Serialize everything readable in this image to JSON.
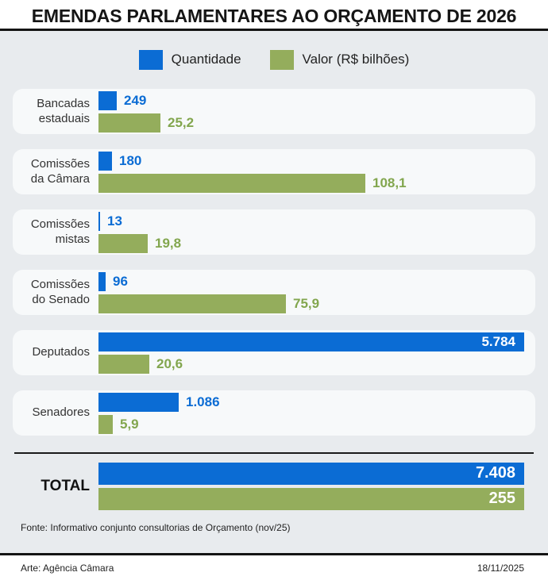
{
  "title": "EMENDAS PARLAMENTARES AO ORÇAMENTO DE 2026",
  "legend": {
    "quantidade": {
      "label": "Quantidade",
      "color": "#0b6cd4"
    },
    "valor": {
      "label": "Valor (R$ bilhões)",
      "color": "#94ad5c"
    }
  },
  "chart_data": {
    "type": "bar",
    "orientation": "horizontal",
    "series": [
      "Quantidade",
      "Valor (R$ bilhões)"
    ],
    "colors": {
      "quantidade": "#0b6cd4",
      "valor": "#94ad5c"
    },
    "rows": [
      {
        "category": "Bancadas\nestaduais",
        "quantidade": 249,
        "quantidade_label": "249",
        "valor": 25.2,
        "valor_label": "25,2"
      },
      {
        "category": "Comissões\nda Câmara",
        "quantidade": 180,
        "quantidade_label": "180",
        "valor": 108.1,
        "valor_label": "108,1"
      },
      {
        "category": "Comissões\nmistas",
        "quantidade": 13,
        "quantidade_label": "13",
        "valor": 19.8,
        "valor_label": "19,8"
      },
      {
        "category": "Comissões\ndo Senado",
        "quantidade": 96,
        "quantidade_label": "96",
        "valor": 75.9,
        "valor_label": "75,9"
      },
      {
        "category": "Deputados",
        "quantidade": 5784,
        "quantidade_label": "5.784",
        "valor": 20.6,
        "valor_label": "20,6"
      },
      {
        "category": "Senadores",
        "quantidade": 1086,
        "quantidade_label": "1.086",
        "valor": 5.9,
        "valor_label": "5,9"
      }
    ],
    "total": {
      "category": "TOTAL",
      "quantidade": 7408,
      "quantidade_label": "7.408",
      "valor": 255,
      "valor_label": "255"
    }
  },
  "footer": {
    "source": "Fonte: Informativo conjunto consultorias de Orçamento (nov/25)",
    "credit": "Arte: Agência Câmara",
    "date": "18/11/2025"
  }
}
